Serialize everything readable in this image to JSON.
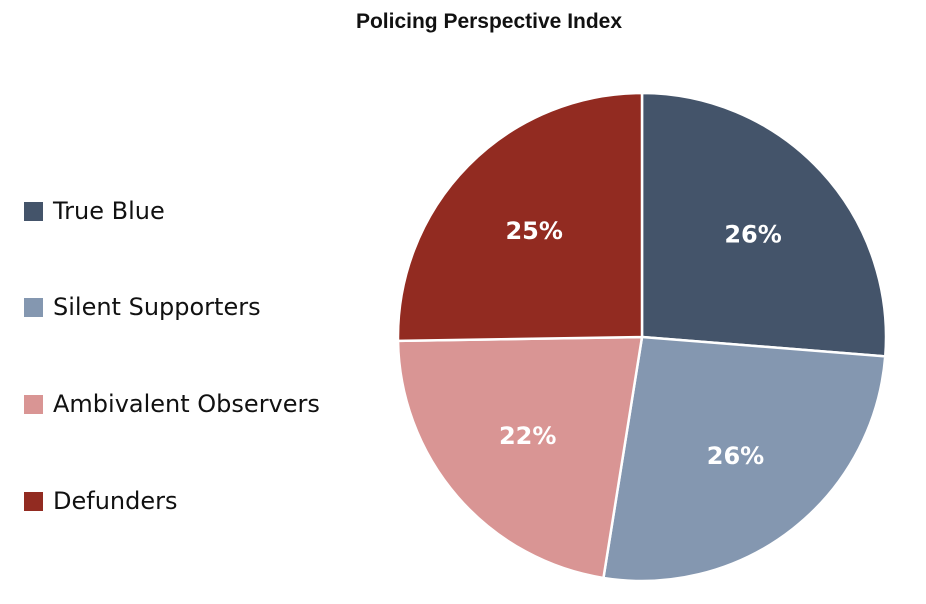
{
  "chart_data": {
    "type": "pie",
    "title": "Policing Perspective Index",
    "start_angle": "12 o'clock, clockwise",
    "legend_position": "left",
    "slices": [
      {
        "name": "True Blue",
        "value": 26,
        "label": "26%",
        "color": "#44546a"
      },
      {
        "name": "Silent Supporters",
        "value": 26,
        "label": "26%",
        "color": "#8497b0"
      },
      {
        "name": "Ambivalent Observers",
        "value": 22,
        "label": "22%",
        "color": "#d99594"
      },
      {
        "name": "Defunders",
        "value": 25,
        "label": "25%",
        "color": "#922b21"
      }
    ]
  }
}
